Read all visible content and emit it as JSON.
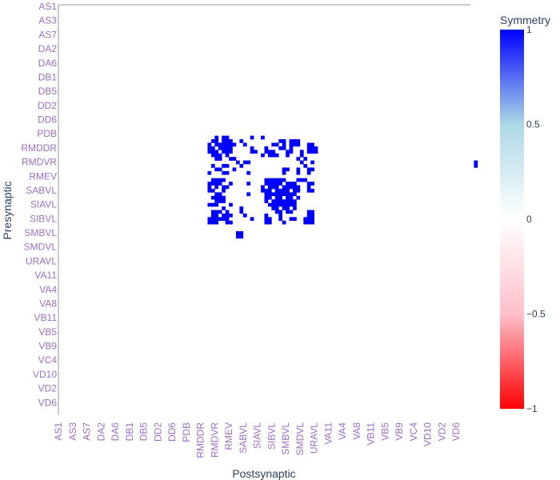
{
  "chart_data": {
    "type": "heatmap",
    "xlabel": "Postsynaptic",
    "ylabel": "Presynaptic",
    "colorbar": {
      "title": "Symmetry",
      "range": [
        -1,
        1
      ],
      "ticks": [
        1,
        0.5,
        0,
        -0.5,
        -1
      ],
      "tick_labels": [
        "1",
        "0.5",
        "0",
        "−0.5",
        "−1"
      ],
      "colorscale": [
        "#ff0000",
        "#ffc0cb",
        "#ffffff",
        "#add8e6",
        "#0000ff"
      ]
    },
    "x_tick_labels": [
      "AS1",
      "AS3",
      "AS7",
      "DA2",
      "DA6",
      "DB1",
      "DB5",
      "DD2",
      "DD6",
      "PDB",
      "RMDDR",
      "RMDVR",
      "RMEV",
      "SABVL",
      "SIAVL",
      "SIBVL",
      "SMBVL",
      "SMDVL",
      "URAVL",
      "VA11",
      "VA4",
      "VA8",
      "VB11",
      "VB5",
      "VB9",
      "VC4",
      "VD10",
      "VD2",
      "VD6"
    ],
    "y_tick_labels": [
      "AS1",
      "AS3",
      "AS7",
      "DA2",
      "DA6",
      "DB1",
      "DB5",
      "DD2",
      "DD6",
      "PDB",
      "RMDDR",
      "RMDVR",
      "RMEV",
      "SABVL",
      "SIAVL",
      "SIBVL",
      "SMBVL",
      "SMDVL",
      "URAVL",
      "VA11",
      "VA4",
      "VA8",
      "VB11",
      "VB5",
      "VB9",
      "VC4",
      "VD10",
      "VD2",
      "VD6"
    ],
    "n_cells": 116,
    "cell_value": 1,
    "filled_cells_note_rows_start_at_row_index": 37,
    "filled_cells": [
      [
        37,
        "0000000000000000000000000000000000000000000010110000001001000000000000000000000000000000000000000000000000000000000000"
      ],
      [
        38,
        "0000000000000000000000000000000000000000000110111001000000000011011100000000000000000000000000000000000000000000000000"
      ],
      [
        39,
        "0000000000000000000000000000000000000000001011111100100000001101011100110000000000000000000000000000000000000000000000"
      ],
      [
        40,
        "0000000000000000000000000000000000000000001101111000001000100011010000111000000000000000000000000000000000000000000000"
      ],
      [
        41,
        "0000000000000000000000000000000000000000001110111000001100111000110010111000000000000000000000000000000000000000000000"
      ],
      [
        42,
        "0000000000000000000000000000000000000000000111010000000001011100100010000000000000000000000000000000000000000000000000"
      ],
      [
        43,
        "0000000000000000000000000000000000000000000011001100000000000000000101000000000000000000000000000000000000000000000000"
      ],
      [
        44,
        "0000000000000000000000000000000000000000000000000010110000000000000010010000000000000000000000000000000000000000000001"
      ],
      [
        45,
        "0000000000000000000000000000000000000000000100110001000000000000000001000000000000000000000000000000000000000000000001"
      ],
      [
        46,
        "0000000000000000000000000000000000000000000011000100000000000001100100110000000000000000000000000000000000000000000000"
      ],
      [
        47,
        "0000000000000000000000000000000000000000001000110000010000000001000100100000000000000000000000000000000000000000000000"
      ],
      [
        49,
        "0000000000000000000000000000000000000000000111100000000000111111000111000000000000000000000000000000000000000000000000"
      ],
      [
        50,
        "0000000000000000000000000000000000000000001111001000010000111110111000110000000000000000000000000000000000000000000000"
      ],
      [
        51,
        "0000000000000000000000000000000000000000001010110000000001011101111100100000000000000000000000000000000000000000000000"
      ],
      [
        52,
        "0000000000000000000000000000000000000000001100100000000001110111101100110000000000000000000000000000000000000000000000"
      ],
      [
        53,
        "0000000000000000000000000000000000000000000011000000010000111111111000000000000000000000000000000000000000000000000000"
      ],
      [
        54,
        "0000000000000000000000000000000000000000000111100000000000110110110100000000000000000000000000000000000000000000000000"
      ],
      [
        55,
        "0000000000000000000000000000000000000000000011100000000000101111111000000000000000000000000000000000000000000000000000"
      ],
      [
        56,
        "0000000000000000000000000000000000000000001110001000000000011111111000000000000000000000000000000000000000000000000000"
      ],
      [
        57,
        "0000000000000000000000000000000000000000000000100001000000001101101000000000000000000000000000000000000000000000000000"
      ],
      [
        58,
        "0000000000000000000000000000000000000000000111010001000000000110110000110000000000000000000000000000000000000000000000"
      ],
      [
        59,
        "0000000000000000000000000000000000000000000110111000100000100010000000110000000000000000000000000000000000000000000000"
      ],
      [
        60,
        "0000000000000000000000000000000000000000001111110000001000110010011001110000000000000000000000000000000000000000000000"
      ],
      [
        61,
        "0000000000000000000000000000000000000000001110011000000000110001000001110000000000000000000000000000000000000000000000"
      ],
      [
        64,
        "0000000000000000000000000000000000000000000000000011000000000000000000000000000000000000000000000000000000000000000000"
      ],
      [
        65,
        "0000000000000000000000000000000000000000000000000011000000000000000000000000000000000000000000000000000000000000000000"
      ]
    ]
  }
}
